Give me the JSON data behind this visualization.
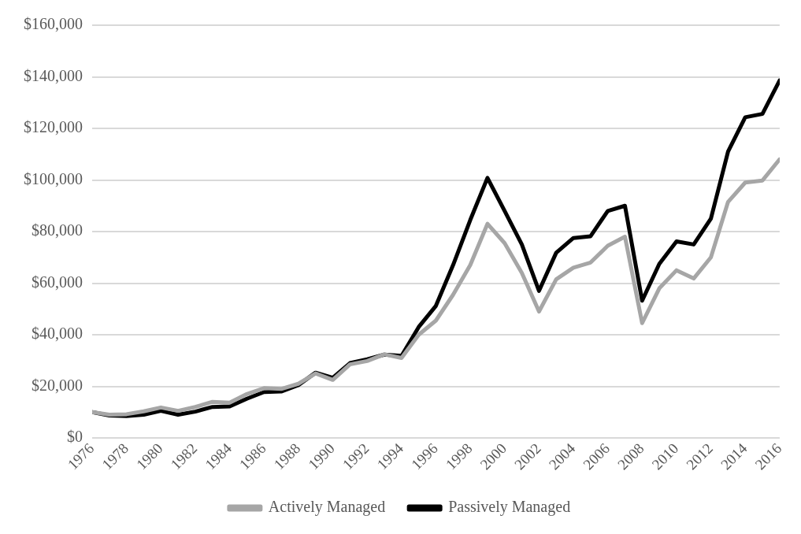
{
  "chart_data": {
    "type": "line",
    "x": [
      1976,
      1977,
      1978,
      1979,
      1980,
      1981,
      1982,
      1983,
      1984,
      1985,
      1986,
      1987,
      1988,
      1989,
      1990,
      1991,
      1992,
      1993,
      1994,
      1995,
      1996,
      1997,
      1998,
      1999,
      2000,
      2001,
      2002,
      2003,
      2004,
      2005,
      2006,
      2007,
      2008,
      2009,
      2010,
      2011,
      2012,
      2013,
      2014,
      2015,
      2016
    ],
    "series": [
      {
        "name": "Actively Managed",
        "color": "#a6a6a6",
        "values": [
          10000,
          9000,
          9200,
          10300,
          11800,
          10500,
          12000,
          14000,
          13700,
          17000,
          19300,
          19000,
          21000,
          25000,
          22500,
          28500,
          29800,
          32400,
          31000,
          40000,
          45500,
          55500,
          67000,
          83000,
          75500,
          64000,
          49000,
          61500,
          66000,
          68000,
          74500,
          78000,
          44500,
          58000,
          65000,
          61800,
          70000,
          91500,
          99000,
          99800,
          108000
        ]
      },
      {
        "name": "Passively Managed",
        "color": "#000000",
        "values": [
          10000,
          8700,
          8500,
          9000,
          10500,
          9000,
          10200,
          12000,
          12200,
          15200,
          17800,
          18000,
          20500,
          25300,
          23300,
          29000,
          30500,
          32300,
          31800,
          43000,
          51200,
          67000,
          84500,
          100800,
          88000,
          75000,
          57000,
          71800,
          77500,
          78200,
          88000,
          90000,
          53200,
          67500,
          76200,
          75000,
          85000,
          111000,
          124300,
          125600,
          138600
        ]
      }
    ],
    "xlim": [
      1976,
      2016
    ],
    "xticks": [
      1976,
      1978,
      1980,
      1982,
      1984,
      1986,
      1988,
      1990,
      1992,
      1994,
      1996,
      1998,
      2000,
      2002,
      2004,
      2006,
      2008,
      2010,
      2012,
      2014,
      2016
    ],
    "ylim": [
      0,
      160000
    ],
    "yticks": [
      {
        "value": 0,
        "label": "$0"
      },
      {
        "value": 20000,
        "label": "$20,000"
      },
      {
        "value": 40000,
        "label": "$40,000"
      },
      {
        "value": 60000,
        "label": "$60,000"
      },
      {
        "value": 80000,
        "label": "$80,000"
      },
      {
        "value": 100000,
        "label": "$100,000"
      },
      {
        "value": 120000,
        "label": "$120,000"
      },
      {
        "value": 140000,
        "label": "$140,000"
      },
      {
        "value": 160000,
        "label": "$160,000"
      }
    ],
    "grid": "y",
    "legend": "bottom",
    "marker": "none",
    "line_style": "solid"
  }
}
